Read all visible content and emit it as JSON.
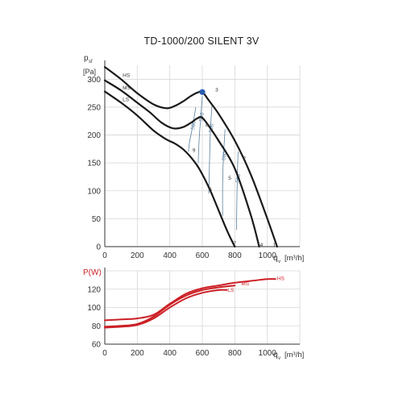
{
  "title": "TD-1000/200 SILENT 3V",
  "chart_data": [
    {
      "type": "line",
      "ylabel_main": "p",
      "ylabel_sub": "sf",
      "ylabel_unit": "[Pa]",
      "xlabel_main": "q",
      "xlabel_sub": "v",
      "xlabel_unit": "[m³/h]",
      "xlim": [
        0,
        1200
      ],
      "ylim": [
        0,
        325
      ],
      "xticks": [
        "0",
        "200",
        "400",
        "600",
        "800",
        "1000"
      ],
      "yticks": [
        "0",
        "50",
        "100",
        "150",
        "200",
        "250",
        "300"
      ],
      "grid": true,
      "series": [
        {
          "name": "HS",
          "points": [
            [
              0,
              322
            ],
            [
              100,
              300
            ],
            [
              200,
              275
            ],
            [
              300,
              255
            ],
            [
              380,
              248
            ],
            [
              430,
              252
            ],
            [
              480,
              260
            ],
            [
              530,
              270
            ],
            [
              570,
              276
            ],
            [
              600,
              277
            ],
            [
              640,
              262
            ],
            [
              700,
              238
            ],
            [
              800,
              190
            ],
            [
              900,
              128
            ],
            [
              1000,
              50
            ],
            [
              1060,
              0
            ]
          ]
        },
        {
          "name": "MS",
          "points": [
            [
              0,
              298
            ],
            [
              100,
              280
            ],
            [
              200,
              258
            ],
            [
              280,
              240
            ],
            [
              350,
              222
            ],
            [
              420,
              212
            ],
            [
              480,
              214
            ],
            [
              530,
              222
            ],
            [
              570,
              230
            ],
            [
              600,
              231
            ],
            [
              650,
              212
            ],
            [
              700,
              190
            ],
            [
              800,
              140
            ],
            [
              900,
              55
            ],
            [
              950,
              0
            ]
          ]
        },
        {
          "name": "LS",
          "points": [
            [
              0,
              278
            ],
            [
              100,
              258
            ],
            [
              200,
              235
            ],
            [
              300,
              208
            ],
            [
              380,
              192
            ],
            [
              430,
              185
            ],
            [
              480,
              175
            ],
            [
              530,
              160
            ],
            [
              580,
              140
            ],
            [
              650,
              100
            ],
            [
              750,
              30
            ],
            [
              800,
              0
            ]
          ]
        }
      ],
      "curve_labels": [
        "HS",
        "MS",
        "LS"
      ],
      "point_labels": [
        "1",
        "2",
        "3",
        "4",
        "5",
        "6",
        "7",
        "8",
        "9"
      ],
      "sound_curves": [
        {
          "label": "500",
          "points": [
            [
              560,
              250
            ],
            [
              540,
              215
            ],
            [
              520,
              185
            ],
            [
              515,
              170
            ]
          ]
        },
        {
          "label": "550",
          "points": [
            [
              600,
              270
            ],
            [
              590,
              230
            ],
            [
              580,
              190
            ],
            [
              575,
              150
            ]
          ]
        },
        {
          "label": "500",
          "points": [
            [
              660,
              255
            ],
            [
              650,
              210
            ],
            [
              645,
              160
            ],
            [
              640,
              95
            ]
          ]
        },
        {
          "label": "600",
          "points": [
            [
              740,
              210
            ],
            [
              730,
              160
            ],
            [
              725,
              110
            ],
            [
              725,
              55
            ]
          ]
        },
        {
          "label": "550",
          "points": [
            [
              820,
              170
            ],
            [
              815,
              120
            ],
            [
              812,
              70
            ],
            [
              810,
              30
            ]
          ]
        }
      ],
      "marker": {
        "x": 600,
        "y": 277,
        "color": "#2a5db0"
      }
    },
    {
      "type": "line",
      "ylabel": "P(W)",
      "xlabel_main": "q",
      "xlabel_sub": "v",
      "xlabel_unit": "[m³/h]",
      "xlim": [
        0,
        1200
      ],
      "ylim": [
        60,
        140
      ],
      "xticks": [
        "0",
        "200",
        "400",
        "600",
        "800",
        "1000"
      ],
      "yticks": [
        "60",
        "80",
        "100",
        "120"
      ],
      "grid": true,
      "series": [
        {
          "name": "HS",
          "points": [
            [
              0,
              86
            ],
            [
              100,
              87
            ],
            [
              200,
              88
            ],
            [
              300,
              92
            ],
            [
              400,
              104
            ],
            [
              500,
              115
            ],
            [
              600,
              121
            ],
            [
              700,
              124
            ],
            [
              800,
              127
            ],
            [
              900,
              129
            ],
            [
              1000,
              131
            ],
            [
              1050,
              131
            ]
          ]
        },
        {
          "name": "MS",
          "points": [
            [
              0,
              79
            ],
            [
              100,
              80
            ],
            [
              200,
              82
            ],
            [
              300,
              90
            ],
            [
              400,
              103
            ],
            [
              500,
              113
            ],
            [
              600,
              119
            ],
            [
              700,
              122
            ],
            [
              800,
              124
            ]
          ]
        },
        {
          "name": "LS",
          "points": [
            [
              0,
              78
            ],
            [
              100,
              79
            ],
            [
              200,
              81
            ],
            [
              300,
              88
            ],
            [
              400,
              100
            ],
            [
              500,
              110
            ],
            [
              600,
              116
            ],
            [
              700,
              119
            ],
            [
              750,
              119
            ]
          ]
        }
      ],
      "curve_labels": [
        "HS",
        "MS",
        "LS"
      ],
      "colors": {
        "curve": "#cc2026",
        "label": "#cc2026"
      }
    }
  ]
}
